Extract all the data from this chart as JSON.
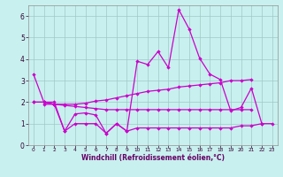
{
  "xlabel": "Windchill (Refroidissement éolien,°C)",
  "background_color": "#c8f0ee",
  "grid_color": "#a0c8c8",
  "line_color": "#cc00cc",
  "x_values": [
    0,
    1,
    2,
    3,
    4,
    5,
    6,
    7,
    8,
    9,
    10,
    11,
    12,
    13,
    14,
    15,
    16,
    17,
    18,
    19,
    20,
    21,
    22,
    23
  ],
  "series1": [
    3.3,
    2.0,
    2.0,
    0.65,
    1.45,
    1.5,
    1.4,
    0.55,
    1.0,
    0.65,
    3.9,
    3.75,
    4.35,
    3.6,
    6.3,
    5.4,
    4.05,
    3.3,
    3.05,
    1.6,
    1.75,
    2.65,
    1.0,
    null
  ],
  "series2": [
    2.0,
    2.0,
    1.9,
    1.9,
    1.9,
    1.95,
    2.05,
    2.1,
    2.2,
    2.3,
    2.4,
    2.5,
    2.55,
    2.6,
    2.7,
    2.75,
    2.8,
    2.85,
    2.9,
    3.0,
    3.0,
    3.05,
    null,
    null
  ],
  "series3": [
    2.0,
    2.0,
    1.9,
    1.85,
    1.8,
    1.75,
    1.7,
    1.65,
    1.65,
    1.65,
    1.65,
    1.65,
    1.65,
    1.65,
    1.65,
    1.65,
    1.65,
    1.65,
    1.65,
    1.65,
    1.65,
    1.65,
    null,
    null
  ],
  "series4": [
    null,
    1.9,
    1.9,
    0.65,
    1.0,
    1.0,
    1.0,
    0.55,
    1.0,
    0.65,
    0.8,
    0.8,
    0.8,
    0.8,
    0.8,
    0.8,
    0.8,
    0.8,
    0.8,
    0.8,
    0.9,
    0.9,
    1.0,
    1.0
  ],
  "ylim": [
    0,
    6.5
  ],
  "xlim": [
    -0.5,
    23.5
  ],
  "yticks": [
    0,
    1,
    2,
    3,
    4,
    5,
    6
  ],
  "xticks": [
    0,
    1,
    2,
    3,
    4,
    5,
    6,
    7,
    8,
    9,
    10,
    11,
    12,
    13,
    14,
    15,
    16,
    17,
    18,
    19,
    20,
    21,
    22,
    23
  ],
  "xlabel_color": "#660066",
  "tick_color": "#330033",
  "xlabel_fontsize": 5.5,
  "xtick_fontsize": 4.2,
  "ytick_fontsize": 5.5,
  "marker_size": 2.2,
  "line_width": 0.9
}
